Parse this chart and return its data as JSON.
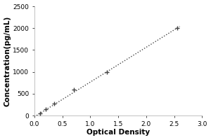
{
  "title": "",
  "xlabel": "Optical Density",
  "ylabel": "Concentration(pg/mL)",
  "xlim": [
    0,
    3
  ],
  "ylim": [
    0,
    2500
  ],
  "xticks": [
    0,
    0.5,
    1,
    1.5,
    2,
    2.5,
    3
  ],
  "yticks": [
    0,
    500,
    1000,
    1500,
    2000,
    2500
  ],
  "data_x": [
    0.1,
    0.2,
    0.35,
    0.7,
    1.3,
    2.55
  ],
  "data_y": [
    50,
    150,
    280,
    600,
    1000,
    2000
  ],
  "line_color": "#444444",
  "marker_color": "#444444",
  "background_color": "#ffffff",
  "plot_bg_color": "#ffffff",
  "tick_fontsize": 6.5,
  "label_fontsize": 7.5,
  "border_color": "#aaaaaa"
}
